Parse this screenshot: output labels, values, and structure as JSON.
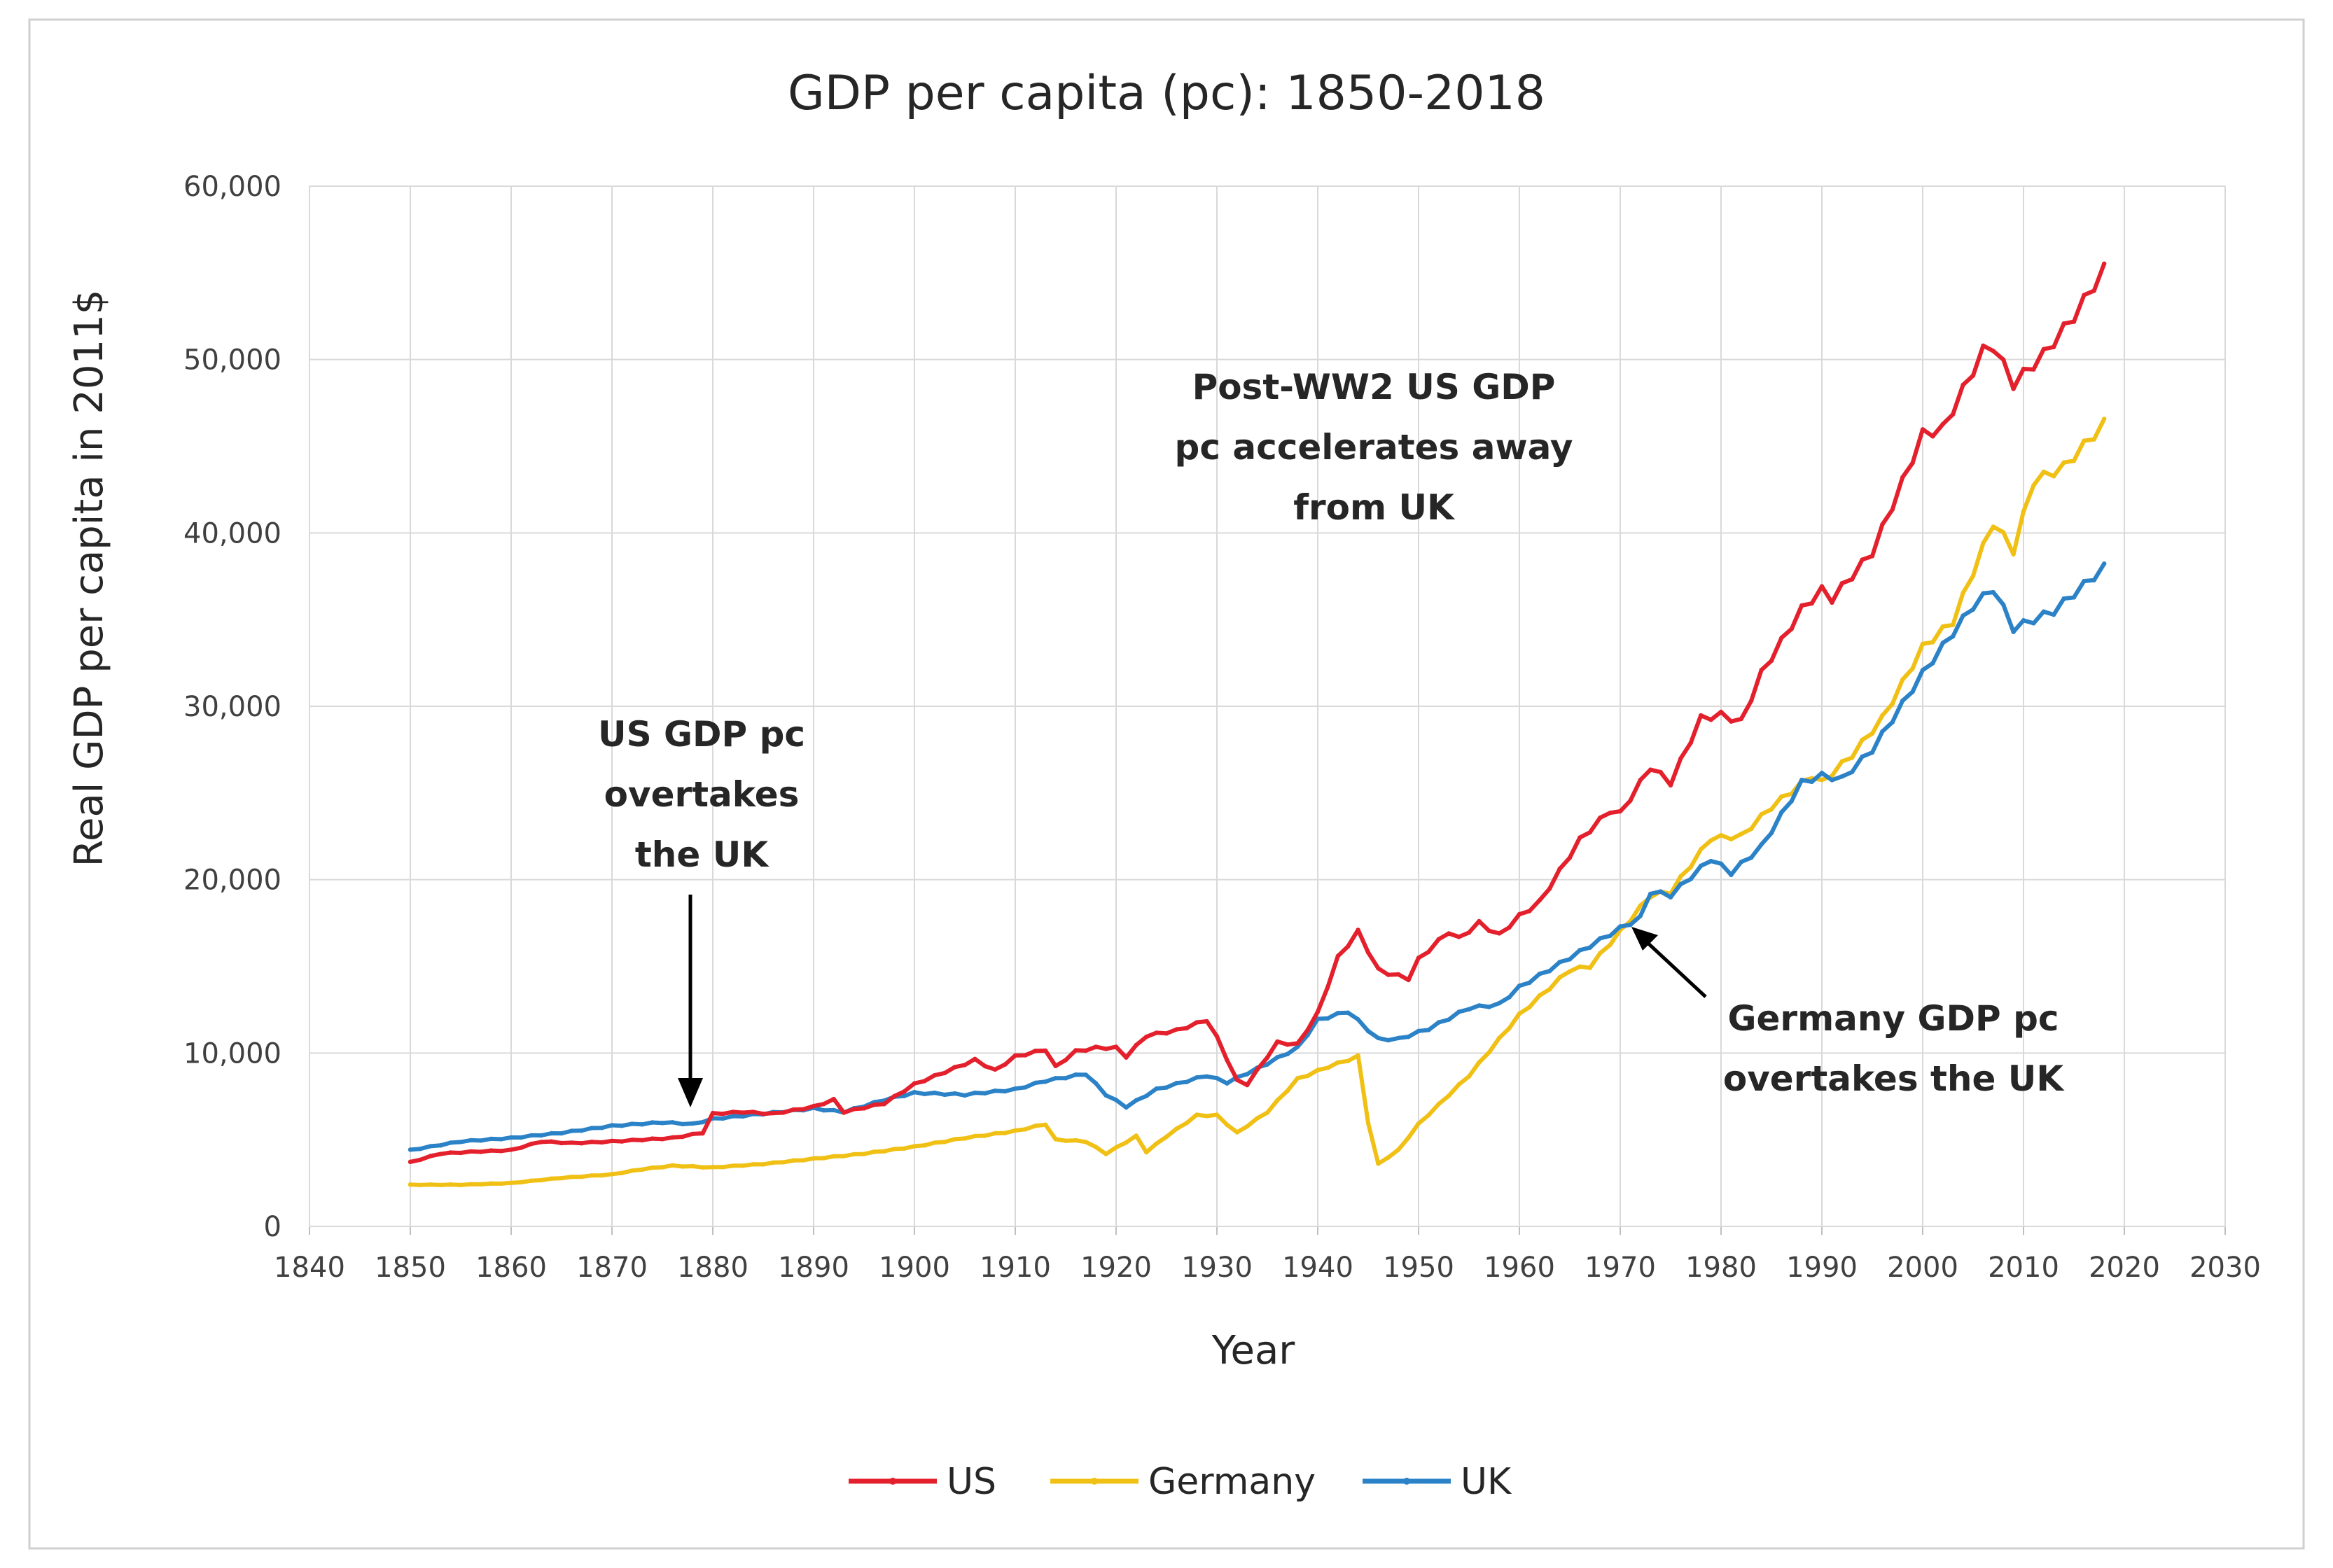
{
  "chart_data": {
    "type": "line",
    "title": "GDP per capita (pc): 1850-2018",
    "xlabel": "Year",
    "ylabel": "Real GDP per capita in 2011$",
    "xlim": [
      1840,
      2030
    ],
    "ylim": [
      0,
      60000
    ],
    "x_ticks": [
      "1840",
      "1850",
      "1860",
      "1870",
      "1880",
      "1890",
      "1900",
      "1910",
      "1920",
      "1930",
      "1940",
      "1950",
      "1960",
      "1970",
      "1980",
      "1990",
      "2000",
      "2010",
      "2020",
      "2030"
    ],
    "y_ticks": [
      "0",
      "10,000",
      "20,000",
      "30,000",
      "40,000",
      "50,000",
      "60,000"
    ],
    "grid": true,
    "legend_position": "bottom",
    "series": [
      {
        "name": "US",
        "color": "#e3202c",
        "points": [
          [
            1850,
            3700
          ],
          [
            1853,
            4200
          ],
          [
            1856,
            4300
          ],
          [
            1860,
            4400
          ],
          [
            1863,
            4900
          ],
          [
            1866,
            4800
          ],
          [
            1870,
            4900
          ],
          [
            1873,
            5000
          ],
          [
            1876,
            5100
          ],
          [
            1879,
            5400
          ],
          [
            1880,
            6500
          ],
          [
            1883,
            6600
          ],
          [
            1886,
            6500
          ],
          [
            1890,
            6900
          ],
          [
            1892,
            7300
          ],
          [
            1893,
            6600
          ],
          [
            1897,
            7100
          ],
          [
            1900,
            8200
          ],
          [
            1903,
            8900
          ],
          [
            1906,
            9600
          ],
          [
            1908,
            9000
          ],
          [
            1910,
            9800
          ],
          [
            1913,
            10200
          ],
          [
            1914,
            9200
          ],
          [
            1916,
            10100
          ],
          [
            1918,
            10300
          ],
          [
            1920,
            10300
          ],
          [
            1921,
            9800
          ],
          [
            1923,
            11000
          ],
          [
            1926,
            11300
          ],
          [
            1929,
            11900
          ],
          [
            1930,
            10900
          ],
          [
            1932,
            8400
          ],
          [
            1933,
            8200
          ],
          [
            1936,
            10600
          ],
          [
            1938,
            10500
          ],
          [
            1940,
            12300
          ],
          [
            1942,
            15500
          ],
          [
            1944,
            17000
          ],
          [
            1946,
            14800
          ],
          [
            1947,
            14600
          ],
          [
            1949,
            14300
          ],
          [
            1950,
            15400
          ],
          [
            1953,
            17000
          ],
          [
            1954,
            16600
          ],
          [
            1956,
            17500
          ],
          [
            1958,
            16800
          ],
          [
            1960,
            17900
          ],
          [
            1962,
            18700
          ],
          [
            1966,
            22300
          ],
          [
            1969,
            24000
          ],
          [
            1970,
            23800
          ],
          [
            1973,
            26500
          ],
          [
            1975,
            25600
          ],
          [
            1978,
            29300
          ],
          [
            1980,
            29500
          ],
          [
            1982,
            29100
          ],
          [
            1984,
            31900
          ],
          [
            1988,
            35600
          ],
          [
            1990,
            36700
          ],
          [
            1991,
            36200
          ],
          [
            1995,
            38900
          ],
          [
            1999,
            44300
          ],
          [
            2000,
            45700
          ],
          [
            2002,
            46000
          ],
          [
            2006,
            50500
          ],
          [
            2007,
            50800
          ],
          [
            2009,
            48600
          ],
          [
            2012,
            50300
          ],
          [
            2015,
            52500
          ],
          [
            2018,
            55200
          ]
        ]
      },
      {
        "name": "Germany",
        "color": "#f0c015",
        "points": [
          [
            1850,
            2400
          ],
          [
            1855,
            2400
          ],
          [
            1860,
            2500
          ],
          [
            1865,
            2800
          ],
          [
            1870,
            3000
          ],
          [
            1873,
            3300
          ],
          [
            1876,
            3500
          ],
          [
            1880,
            3400
          ],
          [
            1885,
            3600
          ],
          [
            1890,
            3900
          ],
          [
            1895,
            4200
          ],
          [
            1900,
            4600
          ],
          [
            1905,
            5100
          ],
          [
            1910,
            5500
          ],
          [
            1913,
            5900
          ],
          [
            1914,
            5000
          ],
          [
            1917,
            4900
          ],
          [
            1919,
            4200
          ],
          [
            1922,
            5200
          ],
          [
            1923,
            4300
          ],
          [
            1925,
            5200
          ],
          [
            1928,
            6400
          ],
          [
            1930,
            6400
          ],
          [
            1932,
            5400
          ],
          [
            1935,
            6600
          ],
          [
            1938,
            8500
          ],
          [
            1941,
            9200
          ],
          [
            1944,
            9800
          ],
          [
            1945,
            6000
          ],
          [
            1946,
            3600
          ],
          [
            1948,
            4400
          ],
          [
            1950,
            5900
          ],
          [
            1955,
            8700
          ],
          [
            1960,
            12200
          ],
          [
            1965,
            14800
          ],
          [
            1967,
            15000
          ],
          [
            1970,
            17000
          ],
          [
            1973,
            19100
          ],
          [
            1975,
            19300
          ],
          [
            1979,
            22400
          ],
          [
            1982,
            22500
          ],
          [
            1985,
            24200
          ],
          [
            1989,
            26000
          ],
          [
            1990,
            25600
          ],
          [
            1993,
            27200
          ],
          [
            1996,
            29300
          ],
          [
            2000,
            33400
          ],
          [
            2003,
            34900
          ],
          [
            2007,
            40600
          ],
          [
            2009,
            39000
          ],
          [
            2011,
            43000
          ],
          [
            2014,
            43800
          ],
          [
            2018,
            46300
          ]
        ]
      },
      {
        "name": "UK",
        "color": "#2b82c7",
        "points": [
          [
            1850,
            4400
          ],
          [
            1855,
            4900
          ],
          [
            1860,
            5100
          ],
          [
            1865,
            5400
          ],
          [
            1870,
            5800
          ],
          [
            1875,
            6000
          ],
          [
            1878,
            5900
          ],
          [
            1880,
            6200
          ],
          [
            1885,
            6500
          ],
          [
            1890,
            6800
          ],
          [
            1893,
            6600
          ],
          [
            1897,
            7300
          ],
          [
            1900,
            7700
          ],
          [
            1905,
            7600
          ],
          [
            1910,
            7900
          ],
          [
            1913,
            8400
          ],
          [
            1917,
            8800
          ],
          [
            1919,
            7600
          ],
          [
            1921,
            6900
          ],
          [
            1924,
            7900
          ],
          [
            1929,
            8700
          ],
          [
            1931,
            8300
          ],
          [
            1934,
            9100
          ],
          [
            1938,
            10300
          ],
          [
            1940,
            11900
          ],
          [
            1943,
            12400
          ],
          [
            1946,
            10800
          ],
          [
            1948,
            10800
          ],
          [
            1951,
            11400
          ],
          [
            1955,
            12600
          ],
          [
            1958,
            12800
          ],
          [
            1960,
            13800
          ],
          [
            1965,
            15500
          ],
          [
            1970,
            17200
          ],
          [
            1972,
            17800
          ],
          [
            1973,
            19300
          ],
          [
            1975,
            19100
          ],
          [
            1979,
            21200
          ],
          [
            1981,
            20400
          ],
          [
            1984,
            21900
          ],
          [
            1988,
            25600
          ],
          [
            1990,
            26000
          ],
          [
            1992,
            25800
          ],
          [
            1995,
            27500
          ],
          [
            2000,
            31900
          ],
          [
            2005,
            35800
          ],
          [
            2007,
            36800
          ],
          [
            2009,
            34500
          ],
          [
            2013,
            35500
          ],
          [
            2018,
            38000
          ]
        ]
      }
    ],
    "annotations": [
      {
        "lines": [
          "US GDP pc",
          "overtakes",
          "the UK"
        ]
      },
      {
        "lines": [
          "Post-WW2  US GDP",
          "pc accelerates  away",
          "from UK"
        ]
      },
      {
        "lines": [
          "Germany GDP pc",
          "overtakes the UK"
        ]
      }
    ]
  }
}
